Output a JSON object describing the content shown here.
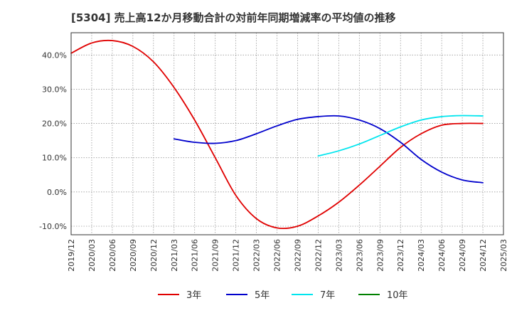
{
  "chart_data": {
    "type": "line",
    "title": "[5304]  売上高12か月移動合計の対前年同期増減率の平均値の推移",
    "xlabel": "",
    "ylabel": "",
    "x_ticks": [
      "2019/12",
      "2020/03",
      "2020/06",
      "2020/09",
      "2020/12",
      "2021/03",
      "2021/06",
      "2021/09",
      "2021/12",
      "2022/03",
      "2022/06",
      "2022/09",
      "2022/12",
      "2023/03",
      "2023/06",
      "2023/09",
      "2023/12",
      "2024/03",
      "2024/06",
      "2024/09",
      "2024/12",
      "2025/03"
    ],
    "y_ticks": [
      "-10.0%",
      "0.0%",
      "10.0%",
      "20.0%",
      "30.0%",
      "40.0%"
    ],
    "y_tick_values": [
      -10,
      0,
      10,
      20,
      30,
      40
    ],
    "ylim": [
      -12.5,
      46.5
    ],
    "grid": true,
    "legend_position": "bottom",
    "series": [
      {
        "name": "3年",
        "color": "#e00000",
        "x": [
          "2019/12",
          "2020/03",
          "2020/06",
          "2020/09",
          "2020/12",
          "2021/03",
          "2021/06",
          "2021/09",
          "2021/12",
          "2022/03",
          "2022/06",
          "2022/09",
          "2022/12",
          "2023/03",
          "2023/06",
          "2023/09",
          "2023/12",
          "2024/03",
          "2024/06",
          "2024/09",
          "2024/12"
        ],
        "values": [
          40.5,
          43.5,
          44.2,
          42.5,
          38.0,
          30.5,
          21.0,
          10.0,
          -1.0,
          -7.8,
          -10.5,
          -10.0,
          -7.0,
          -3.0,
          2.0,
          7.5,
          13.0,
          17.0,
          19.5,
          20.0,
          20.0
        ]
      },
      {
        "name": "5年",
        "color": "#0000cc",
        "x": [
          "2021/03",
          "2021/06",
          "2021/09",
          "2021/12",
          "2022/03",
          "2022/06",
          "2022/09",
          "2022/12",
          "2023/03",
          "2023/06",
          "2023/09",
          "2023/12",
          "2024/03",
          "2024/06",
          "2024/09",
          "2024/12"
        ],
        "values": [
          15.5,
          14.5,
          14.2,
          15.0,
          17.0,
          19.3,
          21.2,
          22.0,
          22.2,
          21.0,
          18.5,
          14.5,
          9.5,
          5.8,
          3.5,
          2.7
        ]
      },
      {
        "name": "7年",
        "color": "#00e5ee",
        "x": [
          "2022/12",
          "2023/03",
          "2023/06",
          "2023/09",
          "2023/12",
          "2024/03",
          "2024/06",
          "2024/09",
          "2024/12"
        ],
        "values": [
          10.5,
          12.0,
          14.0,
          16.5,
          19.0,
          21.0,
          22.0,
          22.3,
          22.2
        ]
      },
      {
        "name": "10年",
        "color": "#008000",
        "x": [],
        "values": []
      }
    ]
  }
}
